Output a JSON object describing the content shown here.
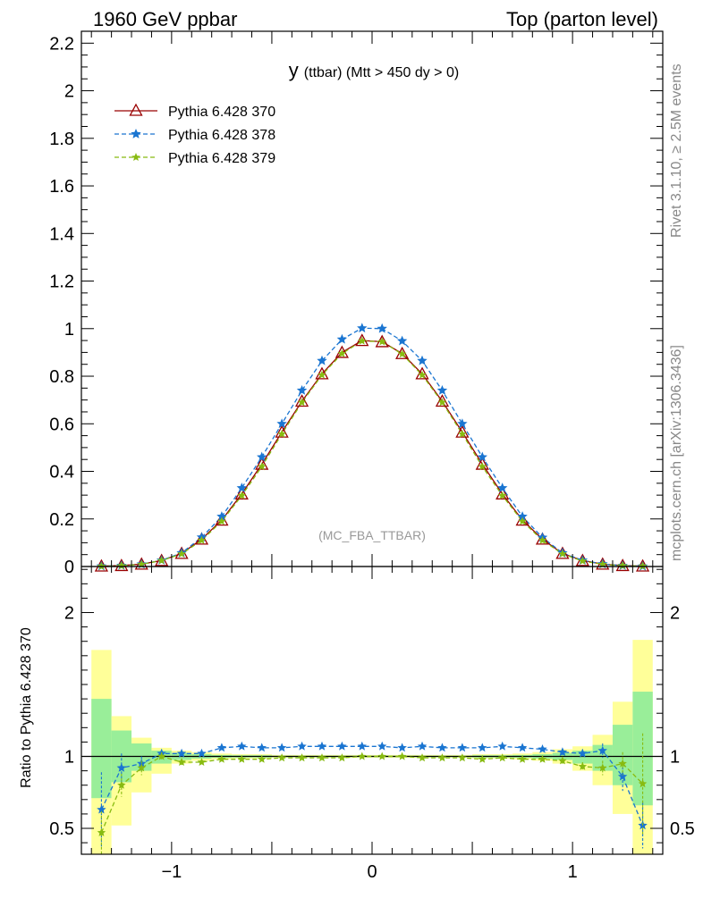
{
  "header": {
    "left_title": "1960 GeV ppbar",
    "right_title": "Top (parton level)"
  },
  "side_labels": {
    "rivet": "Rivet 3.1.10, ≥ 2.5M events",
    "mcplots": "mcplots.cern.ch [arXiv:1306.3436]"
  },
  "plot_title": {
    "main": "y",
    "sub": "(ttbar) (Mtt > 450 dy > 0)"
  },
  "analysis_label": "(MC_FBA_TTBAR)",
  "ratio_ylabel": "Ratio to Pythia 6.428 370",
  "colors": {
    "p370": "#990000",
    "p378": "#1a75d1",
    "p379": "#88bb11",
    "band_yellow": "#ffff99",
    "band_green": "#99ee99"
  },
  "chart_data": {
    "type": "line",
    "x": [
      -1.35,
      -1.25,
      -1.15,
      -1.05,
      -0.95,
      -0.85,
      -0.75,
      -0.65,
      -0.55,
      -0.45,
      -0.35,
      -0.25,
      -0.15,
      -0.05,
      0.05,
      0.15,
      0.25,
      0.35,
      0.45,
      0.55,
      0.65,
      0.75,
      0.85,
      0.95,
      1.05,
      1.15,
      1.25,
      1.35
    ],
    "xlim": [
      -1.45,
      1.45
    ],
    "ylim": [
      0,
      2.25
    ],
    "yticks": [
      0,
      0.2,
      0.4,
      0.6,
      0.8,
      1,
      1.2,
      1.4,
      1.6,
      1.8,
      2,
      2.2
    ],
    "xticks": [
      -1,
      0,
      1
    ],
    "series": [
      {
        "name": "Pythia 6.428 370",
        "marker": "triangle",
        "dash": "solid",
        "values": [
          0.002,
          0.004,
          0.01,
          0.025,
          0.055,
          0.115,
          0.195,
          0.305,
          0.43,
          0.565,
          0.695,
          0.81,
          0.9,
          0.95,
          0.945,
          0.895,
          0.81,
          0.695,
          0.565,
          0.43,
          0.305,
          0.195,
          0.115,
          0.055,
          0.025,
          0.01,
          0.004,
          0.002
        ],
        "ratio": [
          1,
          1,
          1,
          1,
          1,
          1,
          1,
          1,
          1,
          1,
          1,
          1,
          1,
          1,
          1,
          1,
          1,
          1,
          1,
          1,
          1,
          1,
          1,
          1,
          1,
          1,
          1,
          1
        ]
      },
      {
        "name": "Pythia 6.428 378",
        "marker": "star",
        "dash": "dashed",
        "values": [
          0.0015,
          0.004,
          0.0095,
          0.026,
          0.057,
          0.123,
          0.21,
          0.33,
          0.46,
          0.6,
          0.74,
          0.865,
          0.955,
          1.002,
          1.0,
          0.948,
          0.865,
          0.74,
          0.6,
          0.46,
          0.33,
          0.21,
          0.122,
          0.057,
          0.026,
          0.0105,
          0.0034,
          0.001
        ],
        "ratio": [
          0.63,
          0.92,
          0.95,
          1.02,
          1.02,
          1.02,
          1.06,
          1.07,
          1.06,
          1.06,
          1.07,
          1.07,
          1.07,
          1.07,
          1.07,
          1.06,
          1.07,
          1.06,
          1.06,
          1.06,
          1.07,
          1.06,
          1.05,
          1.03,
          1.02,
          1.04,
          0.86,
          0.52
        ],
        "ratio_err": [
          0.26,
          0.1,
          0.05,
          0.03,
          0.02,
          0.015,
          0.01,
          0.01,
          0.01,
          0.01,
          0.01,
          0.01,
          0.01,
          0.01,
          0.01,
          0.01,
          0.01,
          0.01,
          0.01,
          0.01,
          0.01,
          0.01,
          0.015,
          0.02,
          0.03,
          0.05,
          0.1,
          0.16
        ]
      },
      {
        "name": "Pythia 6.428 379",
        "marker": "star",
        "dash": "dashed",
        "values": [
          0.001,
          0.0032,
          0.009,
          0.025,
          0.053,
          0.11,
          0.19,
          0.298,
          0.42,
          0.557,
          0.69,
          0.805,
          0.895,
          0.948,
          0.945,
          0.893,
          0.805,
          0.69,
          0.557,
          0.42,
          0.298,
          0.19,
          0.11,
          0.053,
          0.023,
          0.009,
          0.0034,
          0.0016
        ],
        "ratio": [
          0.47,
          0.8,
          0.92,
          1.0,
          0.96,
          0.96,
          0.98,
          0.98,
          0.98,
          0.99,
          0.99,
          0.99,
          0.99,
          1.0,
          1.0,
          1.0,
          0.99,
          0.99,
          0.99,
          0.98,
          0.99,
          0.98,
          0.98,
          0.97,
          0.93,
          0.92,
          0.95,
          0.81
        ],
        "ratio_err": [
          0.15,
          0.08,
          0.05,
          0.03,
          0.02,
          0.015,
          0.01,
          0.01,
          0.01,
          0.01,
          0.01,
          0.01,
          0.01,
          0.01,
          0.01,
          0.01,
          0.01,
          0.01,
          0.01,
          0.01,
          0.01,
          0.01,
          0.015,
          0.02,
          0.03,
          0.05,
          0.08,
          0.35
        ]
      }
    ],
    "ratio_panel": {
      "ylim": [
        0.32,
        2.32
      ],
      "yticks": [
        0.5,
        1,
        2
      ],
      "band_yellow": [
        [
          0.25,
          1.74
        ],
        [
          0.52,
          1.28
        ],
        [
          0.75,
          1.13
        ],
        [
          0.88,
          1.06
        ],
        [
          0.95,
          1.04
        ],
        [
          0.97,
          1.03
        ],
        [
          0.98,
          1.02
        ],
        [
          0.985,
          1.015
        ],
        [
          0.985,
          1.015
        ],
        [
          0.99,
          1.01
        ],
        [
          0.99,
          1.01
        ],
        [
          0.99,
          1.01
        ],
        [
          0.99,
          1.01
        ],
        [
          0.99,
          1.01
        ],
        [
          0.99,
          1.01
        ],
        [
          0.99,
          1.01
        ],
        [
          0.99,
          1.01
        ],
        [
          0.99,
          1.01
        ],
        [
          0.99,
          1.01
        ],
        [
          0.985,
          1.015
        ],
        [
          0.985,
          1.015
        ],
        [
          0.98,
          1.02
        ],
        [
          0.97,
          1.03
        ],
        [
          0.95,
          1.05
        ],
        [
          0.9,
          1.07
        ],
        [
          0.8,
          1.15
        ],
        [
          0.6,
          1.38
        ],
        [
          0.25,
          1.81
        ]
      ],
      "band_green": [
        [
          0.71,
          1.4
        ],
        [
          0.82,
          1.18
        ],
        [
          0.9,
          1.09
        ],
        [
          0.95,
          1.04
        ],
        [
          0.975,
          1.025
        ],
        [
          0.985,
          1.015
        ],
        [
          0.99,
          1.01
        ],
        [
          0.992,
          1.008
        ],
        [
          0.992,
          1.008
        ],
        [
          0.995,
          1.005
        ],
        [
          0.995,
          1.005
        ],
        [
          0.995,
          1.005
        ],
        [
          0.995,
          1.005
        ],
        [
          0.995,
          1.005
        ],
        [
          0.995,
          1.005
        ],
        [
          0.995,
          1.005
        ],
        [
          0.995,
          1.005
        ],
        [
          0.995,
          1.005
        ],
        [
          0.995,
          1.005
        ],
        [
          0.992,
          1.008
        ],
        [
          0.992,
          1.008
        ],
        [
          0.99,
          1.01
        ],
        [
          0.985,
          1.015
        ],
        [
          0.975,
          1.025
        ],
        [
          0.95,
          1.04
        ],
        [
          0.9,
          1.08
        ],
        [
          0.8,
          1.22
        ],
        [
          0.66,
          1.45
        ]
      ]
    }
  }
}
